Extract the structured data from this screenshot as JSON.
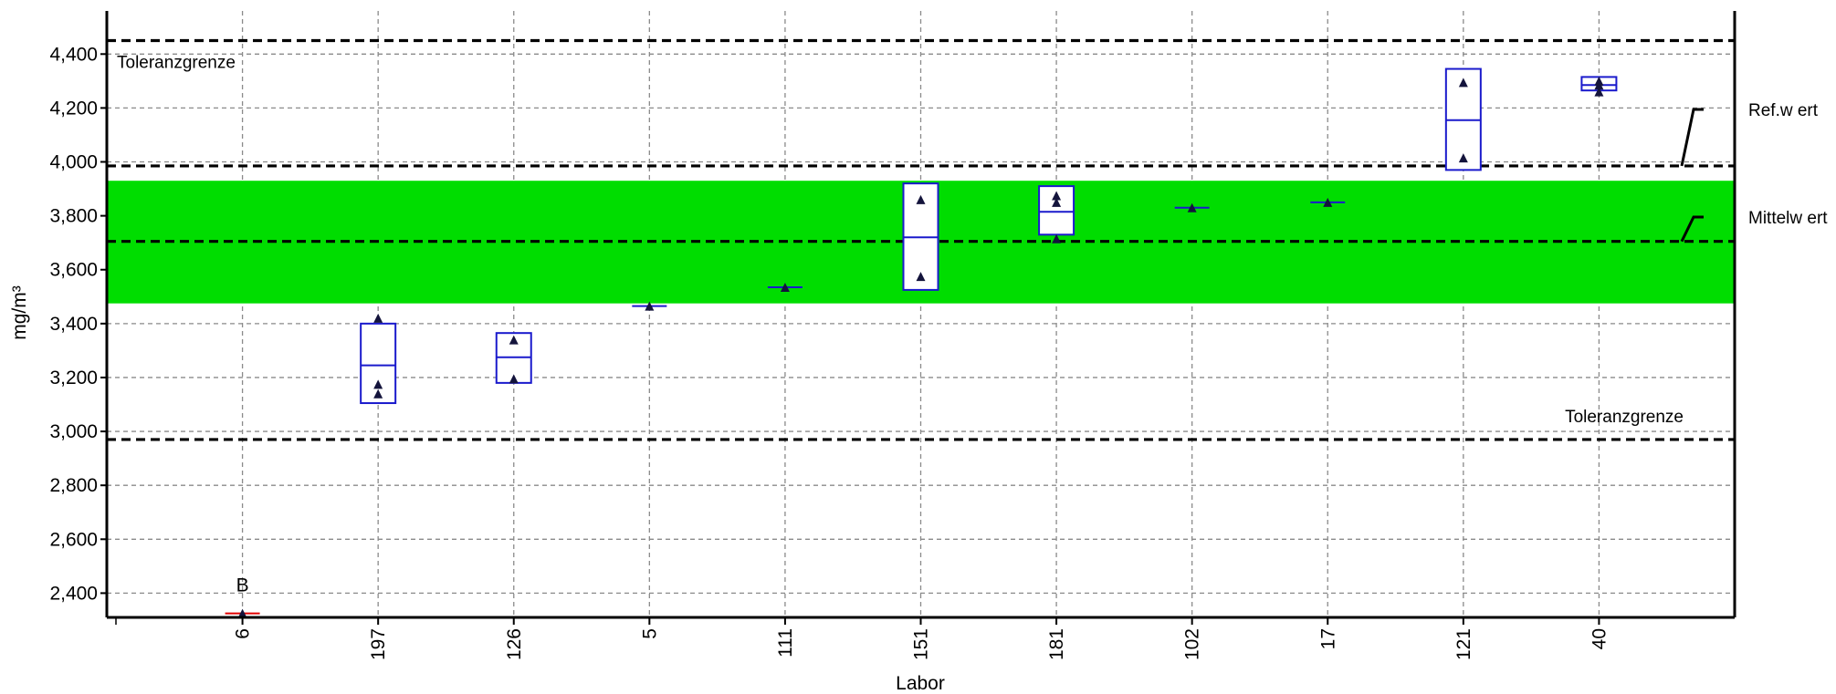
{
  "chart_data": {
    "type": "box",
    "xlabel": "Labor",
    "ylabel": "mg/m³",
    "ylim": [
      2310,
      4560
    ],
    "yticks": [
      2400,
      2600,
      2800,
      3000,
      3200,
      3400,
      3600,
      3800,
      4000,
      4200,
      4400
    ],
    "ytick_labels": [
      "2,400",
      "2,600",
      "2,800",
      "3,000",
      "3,200",
      "3,400",
      "3,600",
      "3,800",
      "4,000",
      "4,200",
      "4,400"
    ],
    "grid": true,
    "tolerance_band": [
      3475,
      3930
    ],
    "band_color": "#00dd00",
    "box_color": "#1a1acc",
    "outlier_color": "#e00000",
    "reference_lines": [
      {
        "name": "upper_tolerance",
        "value": 4450,
        "label": "Toleranzgrenze",
        "label_pos": "top-left"
      },
      {
        "name": "ref_value",
        "value": 3985,
        "label": "Ref.w ert",
        "label_pos": "right-margin"
      },
      {
        "name": "mean_value",
        "value": 3705,
        "label": "Mittelw ert",
        "label_pos": "right-margin"
      },
      {
        "name": "lower_tolerance",
        "value": 2970,
        "label": "Toleranzgrenze",
        "label_pos": "bottom-right"
      }
    ],
    "labs": [
      {
        "lab": "6",
        "min": 2325,
        "max": 2325,
        "median": 2325,
        "points": [
          2325
        ],
        "flag": "B",
        "outlier": true
      },
      {
        "lab": "197",
        "min": 3105,
        "max": 3400,
        "median": 3245,
        "points": [
          3420,
          3175,
          3140
        ]
      },
      {
        "lab": "126",
        "min": 3180,
        "max": 3365,
        "median": 3275,
        "points": [
          3340,
          3195
        ]
      },
      {
        "lab": "5",
        "min": 3465,
        "max": 3465,
        "median": 3465,
        "points": [
          3465
        ]
      },
      {
        "lab": "111",
        "min": 3535,
        "max": 3535,
        "median": 3535,
        "points": [
          3535
        ]
      },
      {
        "lab": "151",
        "min": 3525,
        "max": 3920,
        "median": 3720,
        "points": [
          3860,
          3575
        ]
      },
      {
        "lab": "181",
        "min": 3730,
        "max": 3910,
        "median": 3815,
        "points": [
          3875,
          3850,
          3715
        ]
      },
      {
        "lab": "102",
        "min": 3830,
        "max": 3830,
        "median": 3830,
        "points": [
          3830
        ]
      },
      {
        "lab": "17",
        "min": 3850,
        "max": 3850,
        "median": 3850,
        "points": [
          3850
        ]
      },
      {
        "lab": "121",
        "min": 3970,
        "max": 4345,
        "median": 4155,
        "points": [
          4295,
          4015
        ]
      },
      {
        "lab": "40",
        "min": 4265,
        "max": 4315,
        "median": 4285,
        "points": [
          4300,
          4285,
          4260
        ]
      }
    ]
  }
}
